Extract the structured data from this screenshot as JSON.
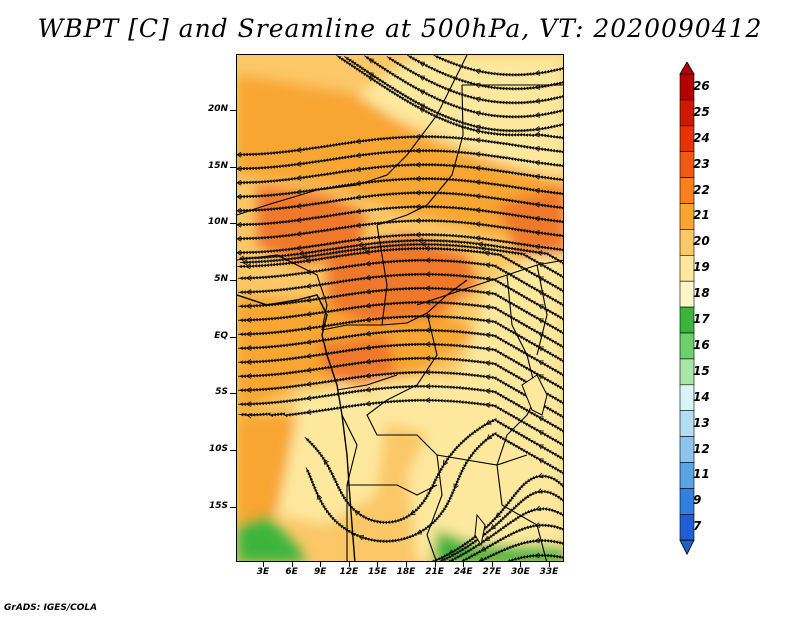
{
  "title": "WBPT [C] and Sreamline at 500hPa, VT: 2020090412",
  "credit": "GrADS: IGES/COLA",
  "lat_labels": [
    "20N",
    "15N",
    "10N",
    "5N",
    "EQ",
    "5S",
    "10S",
    "15S"
  ],
  "lon_labels": [
    "3E",
    "6E",
    "9E",
    "12E",
    "15E",
    "18E",
    "21E",
    "24E",
    "27E",
    "30E",
    "33E"
  ],
  "colorbar": {
    "labels": [
      "26",
      "25",
      "24",
      "23",
      "22",
      "21",
      "20",
      "19",
      "18",
      "17",
      "16",
      "15",
      "14",
      "13",
      "12",
      "11",
      "9",
      "7"
    ],
    "colors": [
      "#b30000",
      "#cc1a00",
      "#e63300",
      "#f05a14",
      "#f5801e",
      "#f8a533",
      "#fbc767",
      "#fde89e",
      "#fdf6c8",
      "#3cb53c",
      "#6ccf6c",
      "#a8e6a8",
      "#d8f4f4",
      "#b4dcf4",
      "#8cc4ee",
      "#5aa4e6",
      "#3080dc",
      "#1f5fd0"
    ]
  },
  "colors": {
    "warm_dark": "#f0782a",
    "warm_mid": "#f8a533",
    "warm_light": "#fbc767",
    "pale": "#fde89e",
    "green": "#3cb53c"
  }
}
